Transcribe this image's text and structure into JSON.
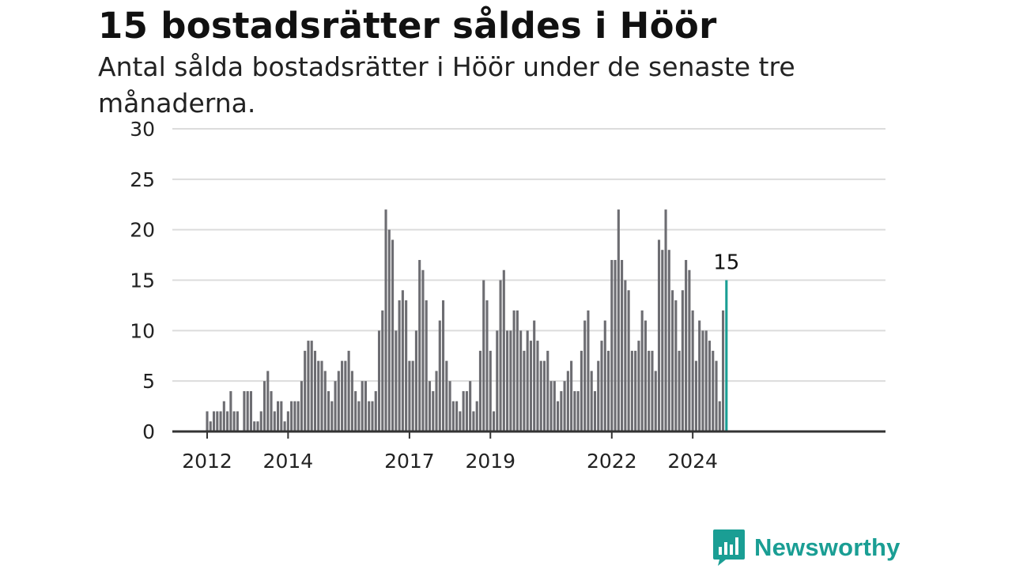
{
  "title": "15 bostadsrätter såldes i Höör",
  "subtitle": "Antal sålda bostadsrätter i Höör under de senaste tre månaderna.",
  "logo": {
    "text": "Newsworthy",
    "icon": "newsworthy-logo-icon",
    "color": "#1a9e94"
  },
  "chart_data": {
    "type": "bar",
    "title": "15 bostadsrätter såldes i Höör",
    "subtitle": "Antal sålda bostadsrätter i Höör under de senaste tre månaderna.",
    "ylim": [
      0,
      30
    ],
    "yticks": [
      0,
      5,
      10,
      15,
      20,
      25,
      30
    ],
    "xticks": [
      "2012",
      "2014",
      "2017",
      "2019",
      "2022",
      "2024"
    ],
    "grid": true,
    "bar_color": "#6d6d72",
    "highlight_color": "#1a9e94",
    "highlight_label": "15",
    "start": "2012-01",
    "values": [
      2,
      1,
      2,
      2,
      2,
      3,
      2,
      4,
      2,
      2,
      0,
      4,
      4,
      4,
      1,
      1,
      2,
      5,
      6,
      4,
      2,
      3,
      3,
      1,
      2,
      3,
      3,
      3,
      5,
      8,
      9,
      9,
      8,
      7,
      7,
      6,
      4,
      3,
      5,
      6,
      7,
      7,
      8,
      6,
      4,
      3,
      5,
      5,
      3,
      3,
      4,
      10,
      12,
      22,
      20,
      19,
      10,
      13,
      14,
      13,
      7,
      7,
      10,
      17,
      16,
      13,
      5,
      4,
      6,
      11,
      13,
      7,
      5,
      3,
      3,
      2,
      4,
      4,
      5,
      2,
      3,
      8,
      15,
      13,
      8,
      2,
      10,
      15,
      16,
      10,
      10,
      12,
      12,
      10,
      8,
      10,
      9,
      11,
      9,
      7,
      7,
      8,
      5,
      5,
      3,
      4,
      5,
      6,
      7,
      4,
      4,
      8,
      11,
      12,
      6,
      4,
      7,
      9,
      11,
      8,
      17,
      17,
      22,
      17,
      15,
      14,
      8,
      8,
      9,
      12,
      11,
      8,
      8,
      6,
      19,
      18,
      22,
      18,
      14,
      13,
      8,
      14,
      17,
      16,
      12,
      7,
      11,
      10,
      10,
      9,
      8,
      7,
      3,
      12,
      15
    ]
  }
}
